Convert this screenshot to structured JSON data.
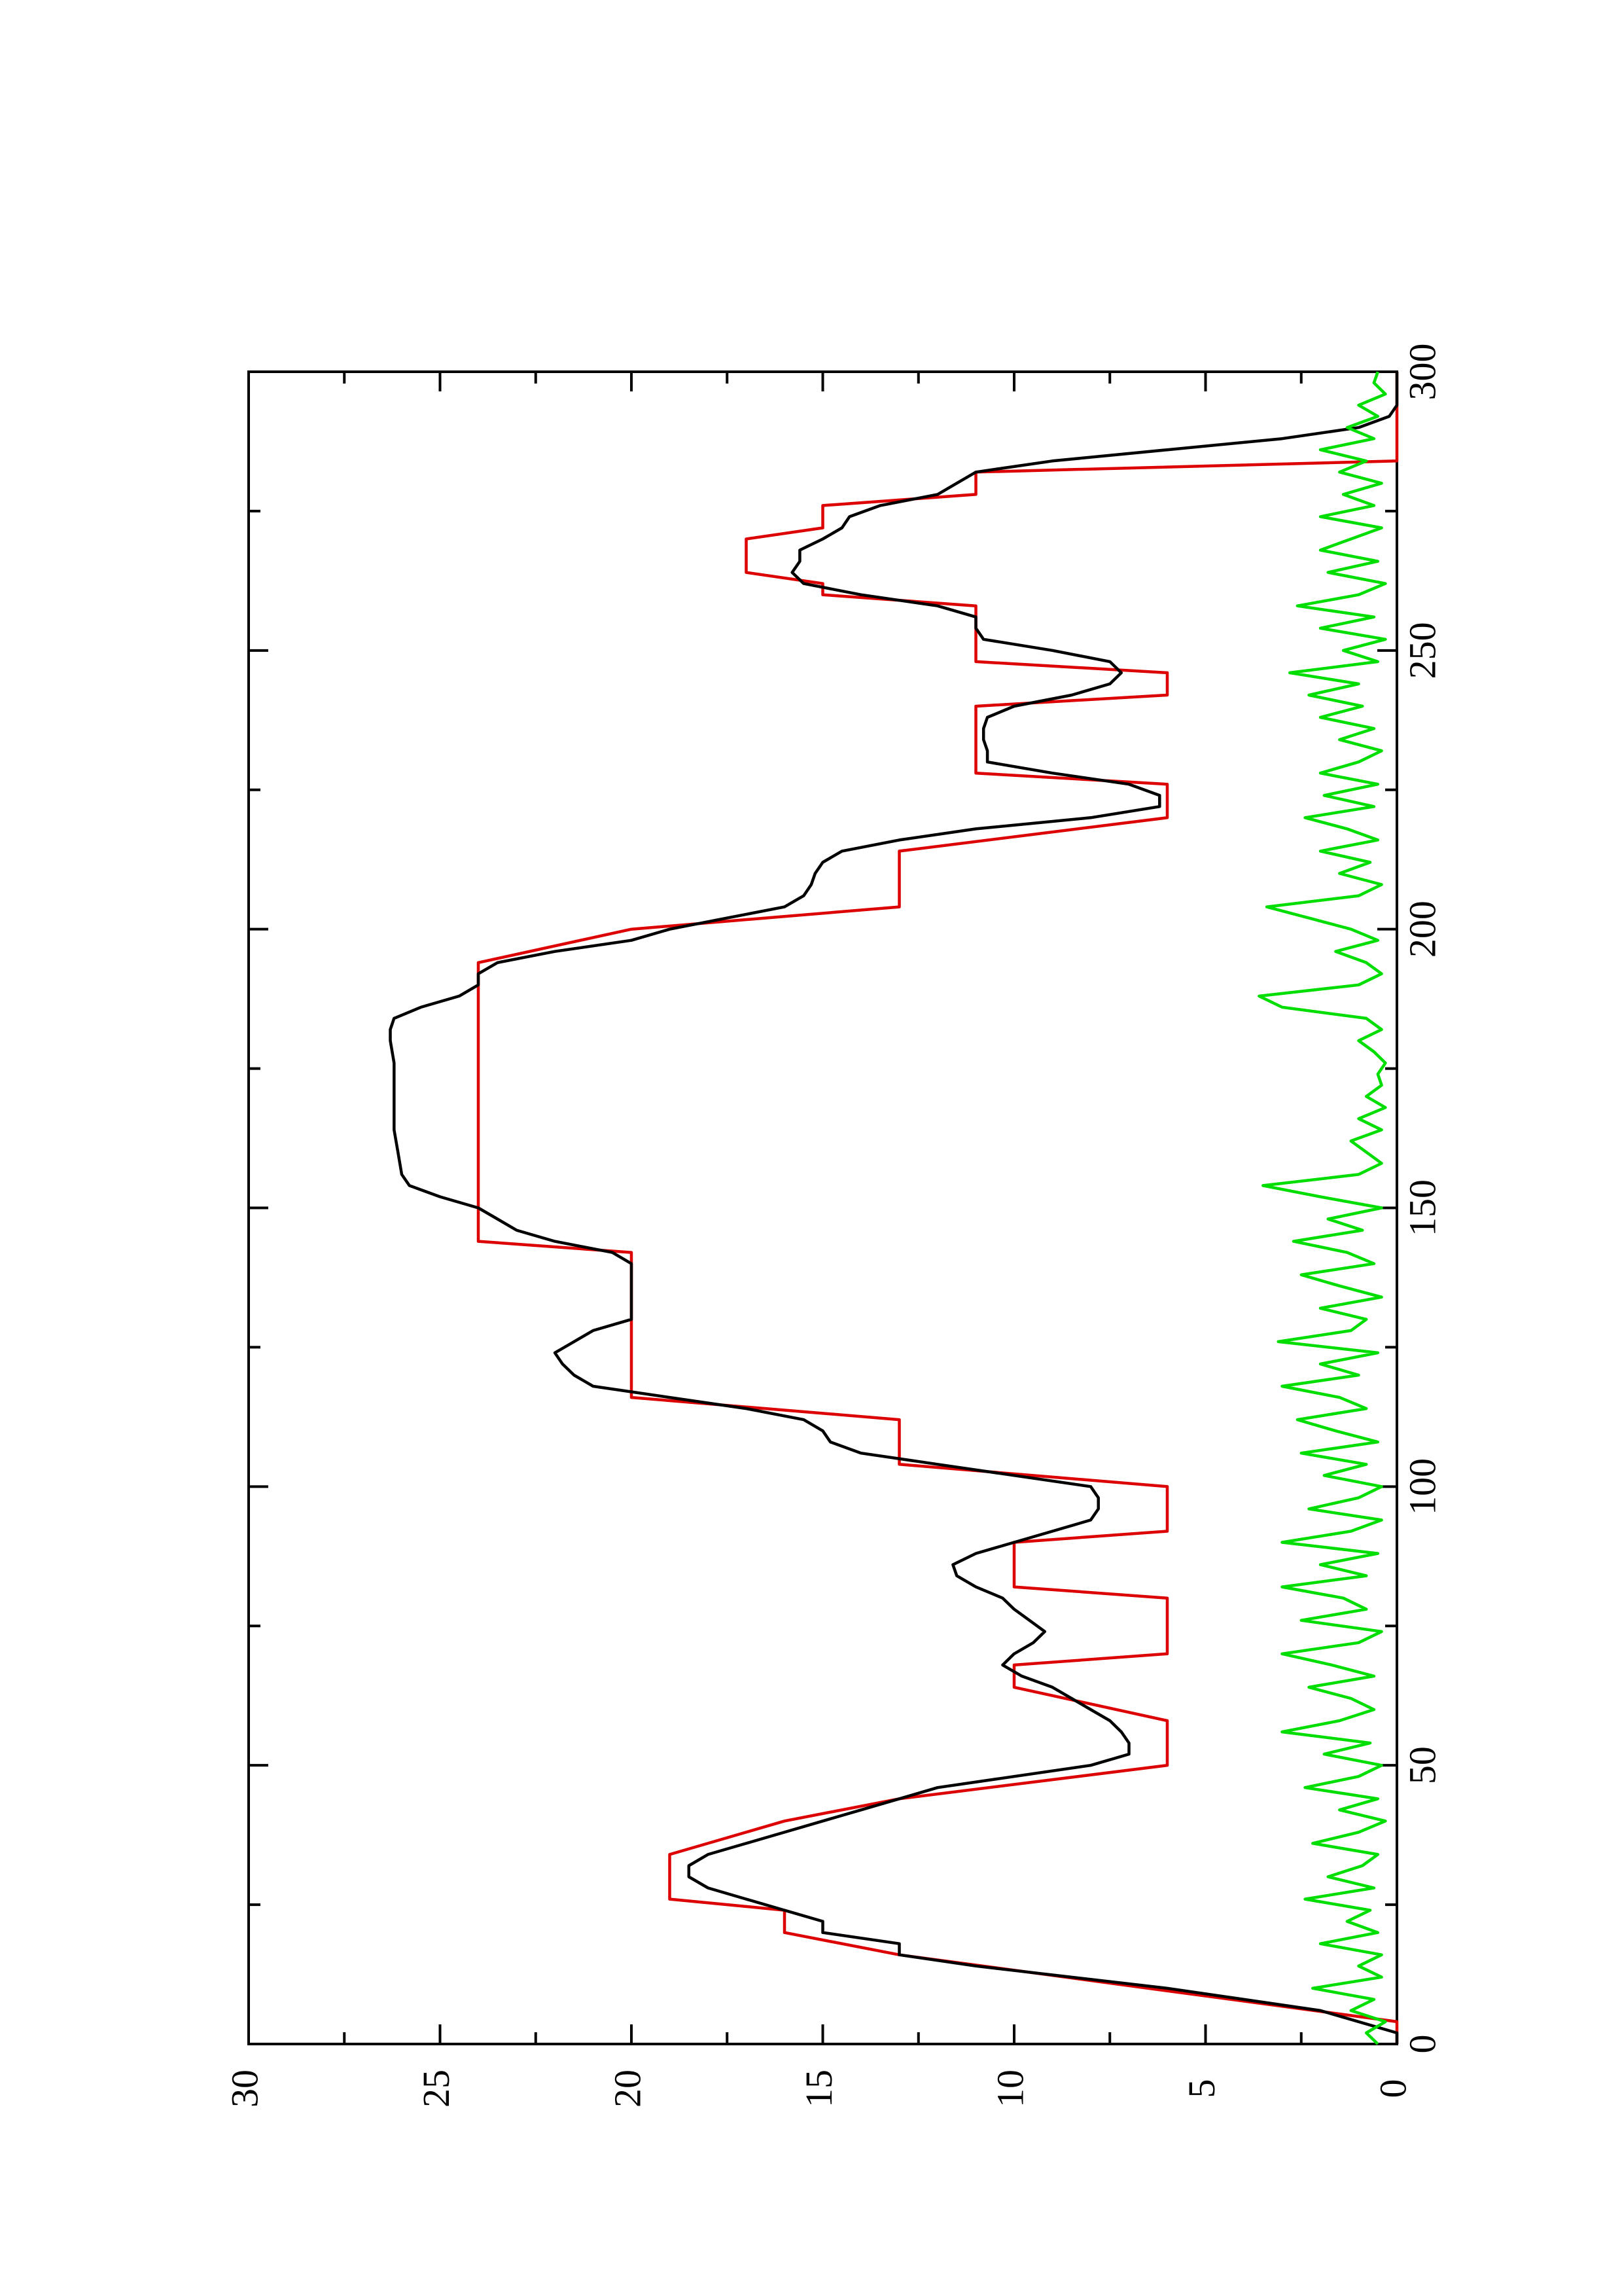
{
  "chart_data": {
    "type": "line",
    "title": "",
    "xlabel": "",
    "ylabel": "",
    "orientation": "rotated-90-ccw",
    "xlim": [
      0,
      300
    ],
    "ylim": [
      0,
      30
    ],
    "x_ticks": [
      "0",
      "50",
      "100",
      "150",
      "200",
      "250",
      "300"
    ],
    "y_ticks": [
      "0",
      "5",
      "10",
      "15",
      "20",
      "25",
      "30"
    ],
    "grid": false,
    "legend": "none",
    "series": [
      {
        "color": "#dd0000",
        "points": [
          [
            0,
            0
          ],
          [
            4,
            0
          ],
          [
            16,
            13
          ],
          [
            20,
            16
          ],
          [
            24,
            16
          ],
          [
            26,
            19
          ],
          [
            34,
            19
          ],
          [
            40,
            16
          ],
          [
            44,
            13
          ],
          [
            50,
            6
          ],
          [
            58,
            6
          ],
          [
            64,
            10
          ],
          [
            68,
            10
          ],
          [
            70,
            6
          ],
          [
            80,
            6
          ],
          [
            82,
            10
          ],
          [
            90,
            10
          ],
          [
            92,
            6
          ],
          [
            100,
            6
          ],
          [
            104,
            13
          ],
          [
            112,
            13
          ],
          [
            116,
            20
          ],
          [
            142,
            20
          ],
          [
            144,
            24
          ],
          [
            194,
            24
          ],
          [
            200,
            20
          ],
          [
            204,
            13
          ],
          [
            214,
            13
          ],
          [
            220,
            6
          ],
          [
            226,
            6
          ],
          [
            228,
            11
          ],
          [
            240,
            11
          ],
          [
            242,
            6
          ],
          [
            246,
            6
          ],
          [
            248,
            11
          ],
          [
            258,
            11
          ],
          [
            260,
            15
          ],
          [
            262,
            15
          ],
          [
            264,
            17
          ],
          [
            270,
            17
          ],
          [
            272,
            15
          ],
          [
            276,
            15
          ],
          [
            278,
            11
          ],
          [
            282,
            11
          ],
          [
            284,
            0
          ],
          [
            300,
            0
          ]
        ]
      },
      {
        "color": "#000000",
        "points": [
          [
            0,
            0
          ],
          [
            2,
            0
          ],
          [
            6,
            2
          ],
          [
            10,
            6
          ],
          [
            14,
            11
          ],
          [
            16,
            13
          ],
          [
            18,
            13
          ],
          [
            20,
            15
          ],
          [
            22,
            15
          ],
          [
            24,
            16
          ],
          [
            26,
            17
          ],
          [
            28,
            18
          ],
          [
            30,
            18.5
          ],
          [
            32,
            18.5
          ],
          [
            34,
            18
          ],
          [
            36,
            17
          ],
          [
            38,
            16
          ],
          [
            40,
            15
          ],
          [
            42,
            14
          ],
          [
            44,
            13
          ],
          [
            46,
            12
          ],
          [
            48,
            10
          ],
          [
            50,
            8
          ],
          [
            52,
            7
          ],
          [
            54,
            7
          ],
          [
            56,
            7.2
          ],
          [
            58,
            7.5
          ],
          [
            60,
            8
          ],
          [
            62,
            8.5
          ],
          [
            64,
            9
          ],
          [
            66,
            9.8
          ],
          [
            68,
            10.3
          ],
          [
            70,
            10
          ],
          [
            72,
            9.5
          ],
          [
            74,
            9.2
          ],
          [
            76,
            9.6
          ],
          [
            78,
            10
          ],
          [
            80,
            10.3
          ],
          [
            82,
            11
          ],
          [
            84,
            11.5
          ],
          [
            86,
            11.6
          ],
          [
            88,
            11
          ],
          [
            90,
            10
          ],
          [
            92,
            9
          ],
          [
            94,
            8
          ],
          [
            96,
            7.8
          ],
          [
            98,
            7.8
          ],
          [
            100,
            8
          ],
          [
            102,
            10
          ],
          [
            104,
            12
          ],
          [
            106,
            14
          ],
          [
            108,
            14.8
          ],
          [
            110,
            15
          ],
          [
            112,
            15.5
          ],
          [
            114,
            17
          ],
          [
            116,
            19
          ],
          [
            118,
            21
          ],
          [
            120,
            21.5
          ],
          [
            122,
            21.8
          ],
          [
            124,
            22
          ],
          [
            126,
            21.5
          ],
          [
            128,
            21
          ],
          [
            130,
            20
          ],
          [
            132,
            20
          ],
          [
            134,
            20
          ],
          [
            136,
            20
          ],
          [
            138,
            20
          ],
          [
            140,
            20
          ],
          [
            142,
            20.5
          ],
          [
            144,
            22
          ],
          [
            146,
            23
          ],
          [
            148,
            23.5
          ],
          [
            150,
            24
          ],
          [
            152,
            25
          ],
          [
            154,
            25.8
          ],
          [
            156,
            26
          ],
          [
            160,
            26.1
          ],
          [
            164,
            26.2
          ],
          [
            170,
            26.2
          ],
          [
            176,
            26.2
          ],
          [
            180,
            26.3
          ],
          [
            182,
            26.3
          ],
          [
            184,
            26.2
          ],
          [
            186,
            25.5
          ],
          [
            188,
            24.5
          ],
          [
            190,
            24
          ],
          [
            192,
            24
          ],
          [
            194,
            23.5
          ],
          [
            196,
            22
          ],
          [
            198,
            20
          ],
          [
            200,
            19
          ],
          [
            202,
            17.5
          ],
          [
            204,
            16
          ],
          [
            206,
            15.5
          ],
          [
            208,
            15.3
          ],
          [
            210,
            15.2
          ],
          [
            212,
            15
          ],
          [
            214,
            14.5
          ],
          [
            216,
            13
          ],
          [
            218,
            11
          ],
          [
            220,
            8
          ],
          [
            222,
            6.2
          ],
          [
            224,
            6.2
          ],
          [
            226,
            7
          ],
          [
            228,
            9
          ],
          [
            230,
            10.7
          ],
          [
            232,
            10.7
          ],
          [
            234,
            10.8
          ],
          [
            236,
            10.8
          ],
          [
            238,
            10.7
          ],
          [
            240,
            10
          ],
          [
            242,
            8.5
          ],
          [
            244,
            7.5
          ],
          [
            246,
            7.2
          ],
          [
            248,
            7.5
          ],
          [
            250,
            9
          ],
          [
            252,
            10.8
          ],
          [
            254,
            11
          ],
          [
            256,
            11
          ],
          [
            258,
            12
          ],
          [
            260,
            14
          ],
          [
            262,
            15.5
          ],
          [
            264,
            15.8
          ],
          [
            266,
            15.6
          ],
          [
            268,
            15.6
          ],
          [
            270,
            15
          ],
          [
            272,
            14.5
          ],
          [
            274,
            14.3
          ],
          [
            276,
            13.5
          ],
          [
            278,
            12
          ],
          [
            280,
            11.5
          ],
          [
            282,
            11
          ],
          [
            284,
            9
          ],
          [
            286,
            6
          ],
          [
            288,
            3
          ],
          [
            290,
            1
          ],
          [
            292,
            0.2
          ],
          [
            294,
            0
          ],
          [
            296,
            0
          ],
          [
            300,
            0
          ]
        ]
      },
      {
        "color": "#00dd00",
        "points": [
          [
            0,
            0.5
          ],
          [
            2,
            0.8
          ],
          [
            4,
            0.3
          ],
          [
            6,
            1.2
          ],
          [
            8,
            0.6
          ],
          [
            10,
            2.2
          ],
          [
            12,
            0.4
          ],
          [
            14,
            1
          ],
          [
            16,
            0.4
          ],
          [
            18,
            2
          ],
          [
            20,
            0.5
          ],
          [
            22,
            1.3
          ],
          [
            24,
            0.7
          ],
          [
            26,
            2.4
          ],
          [
            28,
            0.6
          ],
          [
            30,
            1.8
          ],
          [
            32,
            0.9
          ],
          [
            34,
            0.5
          ],
          [
            36,
            2.2
          ],
          [
            38,
            1
          ],
          [
            40,
            0.3
          ],
          [
            42,
            1.5
          ],
          [
            44,
            0.5
          ],
          [
            46,
            2.4
          ],
          [
            48,
            1
          ],
          [
            50,
            0.4
          ],
          [
            52,
            1.9
          ],
          [
            54,
            0.7
          ],
          [
            56,
            3
          ],
          [
            58,
            1.5
          ],
          [
            60,
            0.6
          ],
          [
            62,
            1.2
          ],
          [
            64,
            2.3
          ],
          [
            66,
            0.6
          ],
          [
            68,
            1.7
          ],
          [
            70,
            3
          ],
          [
            72,
            1
          ],
          [
            74,
            0.4
          ],
          [
            76,
            2.5
          ],
          [
            78,
            0.8
          ],
          [
            80,
            1.4
          ],
          [
            82,
            3
          ],
          [
            84,
            0.8
          ],
          [
            86,
            2
          ],
          [
            88,
            0.5
          ],
          [
            90,
            3
          ],
          [
            92,
            1.2
          ],
          [
            94,
            0.4
          ],
          [
            96,
            2.3
          ],
          [
            98,
            1
          ],
          [
            100,
            0.4
          ],
          [
            102,
            1.9
          ],
          [
            104,
            0.8
          ],
          [
            106,
            2.5
          ],
          [
            108,
            0.5
          ],
          [
            110,
            1.6
          ],
          [
            112,
            2.6
          ],
          [
            114,
            0.8
          ],
          [
            116,
            1.5
          ],
          [
            118,
            3
          ],
          [
            120,
            1
          ],
          [
            122,
            2
          ],
          [
            124,
            0.5
          ],
          [
            126,
            3.1
          ],
          [
            128,
            1.2
          ],
          [
            130,
            0.8
          ],
          [
            132,
            2
          ],
          [
            134,
            0.4
          ],
          [
            136,
            1.5
          ],
          [
            138,
            2.5
          ],
          [
            140,
            0.6
          ],
          [
            142,
            1.3
          ],
          [
            144,
            2.7
          ],
          [
            146,
            0.9
          ],
          [
            148,
            1.8
          ],
          [
            150,
            0.4
          ],
          [
            152,
            2
          ],
          [
            154,
            3.5
          ],
          [
            156,
            1
          ],
          [
            158,
            0.4
          ],
          [
            160,
            0.8
          ],
          [
            162,
            1.2
          ],
          [
            164,
            0.4
          ],
          [
            166,
            1
          ],
          [
            168,
            0.3
          ],
          [
            170,
            0.8
          ],
          [
            172,
            0.4
          ],
          [
            174,
            0.5
          ],
          [
            176,
            0.3
          ],
          [
            178,
            0.6
          ],
          [
            180,
            1
          ],
          [
            182,
            0.4
          ],
          [
            184,
            0.8
          ],
          [
            186,
            3
          ],
          [
            188,
            3.6
          ],
          [
            190,
            1
          ],
          [
            192,
            0.4
          ],
          [
            194,
            0.8
          ],
          [
            196,
            1.6
          ],
          [
            198,
            0.5
          ],
          [
            200,
            1.2
          ],
          [
            202,
            2.3
          ],
          [
            204,
            3.4
          ],
          [
            206,
            1
          ],
          [
            208,
            0.4
          ],
          [
            210,
            1.5
          ],
          [
            212,
            0.7
          ],
          [
            214,
            2
          ],
          [
            216,
            0.5
          ],
          [
            218,
            1.3
          ],
          [
            220,
            2.4
          ],
          [
            222,
            0.6
          ],
          [
            224,
            1.9
          ],
          [
            226,
            0.5
          ],
          [
            228,
            2
          ],
          [
            230,
            1
          ],
          [
            232,
            0.4
          ],
          [
            234,
            1.5
          ],
          [
            236,
            0.6
          ],
          [
            238,
            2
          ],
          [
            240,
            0.9
          ],
          [
            242,
            2.3
          ],
          [
            244,
            1
          ],
          [
            246,
            2.8
          ],
          [
            248,
            0.5
          ],
          [
            250,
            1.4
          ],
          [
            252,
            0.3
          ],
          [
            254,
            2
          ],
          [
            256,
            0.6
          ],
          [
            258,
            2.6
          ],
          [
            260,
            1
          ],
          [
            262,
            0.3
          ],
          [
            264,
            1.8
          ],
          [
            266,
            0.5
          ],
          [
            268,
            2
          ],
          [
            270,
            1.2
          ],
          [
            272,
            0.4
          ],
          [
            274,
            2
          ],
          [
            276,
            0.6
          ],
          [
            278,
            1.4
          ],
          [
            280,
            0.4
          ],
          [
            282,
            1.5
          ],
          [
            284,
            0.8
          ],
          [
            286,
            2
          ],
          [
            288,
            0.6
          ],
          [
            290,
            1.3
          ],
          [
            292,
            0.5
          ],
          [
            294,
            1
          ],
          [
            296,
            0.3
          ],
          [
            298,
            0.6
          ],
          [
            300,
            0.5
          ]
        ]
      }
    ]
  }
}
